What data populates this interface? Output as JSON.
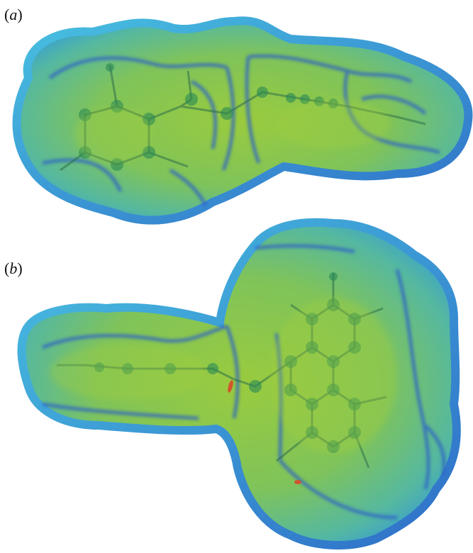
{
  "figure": {
    "panels": [
      {
        "label": "a"
      },
      {
        "label": "b"
      }
    ],
    "colors": {
      "surface_fill": "#7fc85a",
      "surface_edge": "#2f7fd0",
      "surface_rim": "#3aa9d8",
      "hotspot": "#d94a2a",
      "atom": "#2a8a55",
      "bond": "#2e6f4a"
    }
  }
}
